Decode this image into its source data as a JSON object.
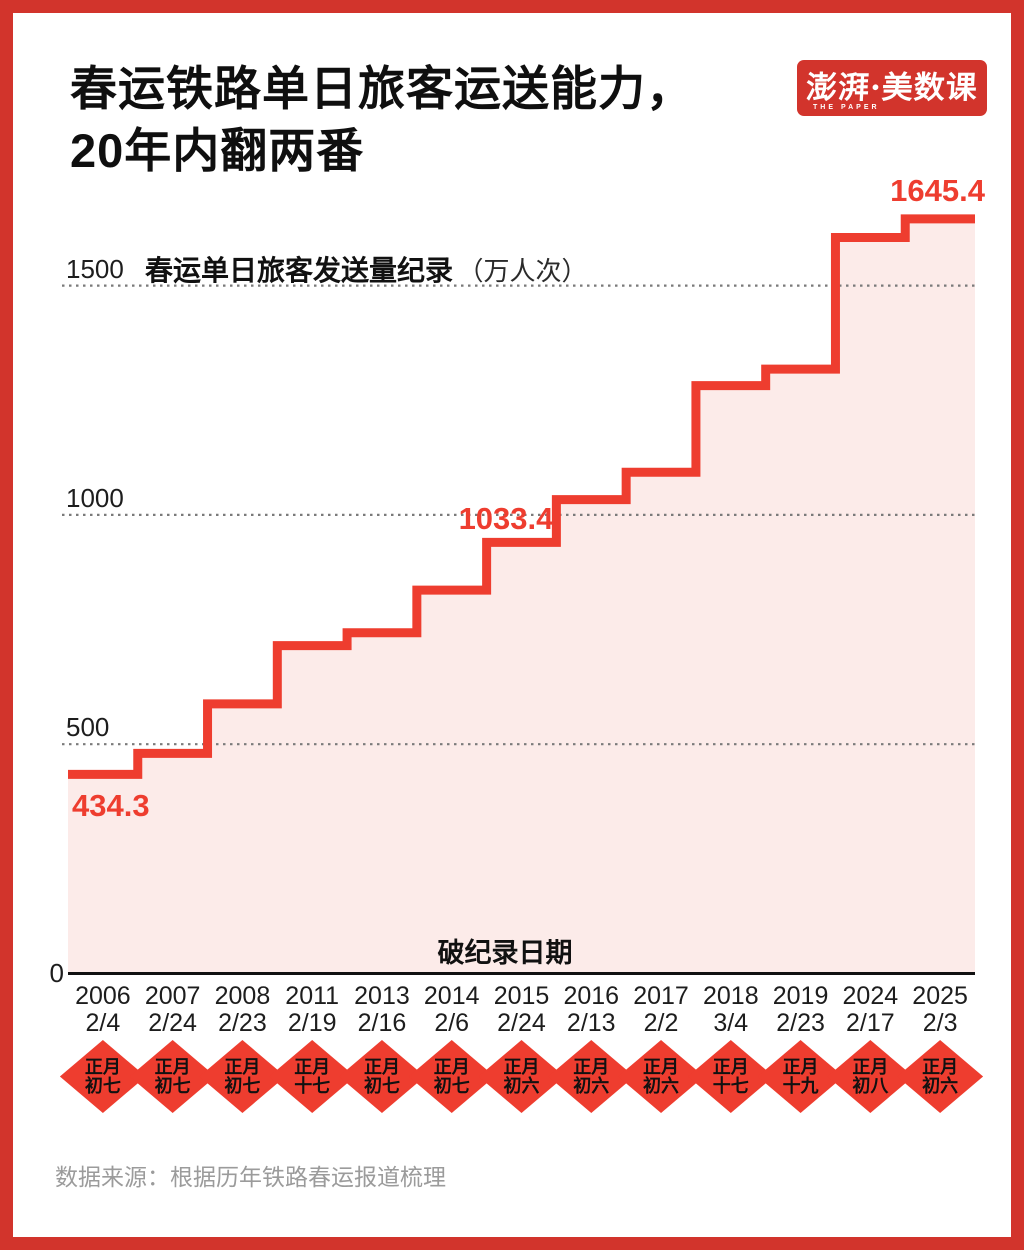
{
  "page": {
    "title_line1": "春运铁路单日旅客运送能力，",
    "title_line2": "20年内翻两番",
    "logo_text": "澎湃·美数课",
    "logo_subtext": "THE PAPER",
    "source": "数据来源：根据历年铁路春运报道梳理"
  },
  "colors": {
    "accent_red": "#ee3d2f",
    "frame_red": "#d2342c",
    "area_pink": "#fcebe9",
    "grid_gray": "#7a7a7a",
    "axis_black": "#111111",
    "source_gray": "#9b9b9b"
  },
  "chart_data": {
    "type": "step-area",
    "title": "春运铁路单日旅客运送能力，20年内翻两番",
    "series_label": "春运单日旅客发送量纪录",
    "series_unit": "（万人次）",
    "x_axis_label": "破纪录日期",
    "ylabel": "万人次",
    "y_ticks": [
      0,
      500,
      1000,
      1500
    ],
    "ylim": [
      0,
      1700
    ],
    "grid": "horizontal dotted",
    "legend_position": "top-left inside plot",
    "points": [
      {
        "year": "2006",
        "date": "2/4",
        "lunar": "正月初七",
        "value": 434.3,
        "labeled": true,
        "label_text": "434.3"
      },
      {
        "year": "2007",
        "date": "2/24",
        "lunar": "正月初七",
        "value": 480,
        "labeled": false
      },
      {
        "year": "2008",
        "date": "2/23",
        "lunar": "正月初七",
        "value": 588,
        "labeled": false
      },
      {
        "year": "2011",
        "date": "2/19",
        "lunar": "正月十七",
        "value": 715,
        "labeled": false
      },
      {
        "year": "2013",
        "date": "2/16",
        "lunar": "正月初七",
        "value": 743,
        "labeled": false
      },
      {
        "year": "2014",
        "date": "2/6",
        "lunar": "正月初七",
        "value": 836,
        "labeled": false
      },
      {
        "year": "2015",
        "date": "2/24",
        "lunar": "正月初六",
        "value": 940,
        "labeled": false
      },
      {
        "year": "2016",
        "date": "2/13",
        "lunar": "正月初六",
        "value": 1033.4,
        "labeled": true,
        "label_text": "1033.4"
      },
      {
        "year": "2017",
        "date": "2/2",
        "lunar": "正月初六",
        "value": 1093,
        "labeled": false
      },
      {
        "year": "2018",
        "date": "3/4",
        "lunar": "正月十七",
        "value": 1282,
        "labeled": false
      },
      {
        "year": "2019",
        "date": "2/23",
        "lunar": "正月十九",
        "value": 1318,
        "labeled": false
      },
      {
        "year": "2024",
        "date": "2/17",
        "lunar": "正月初八",
        "value": 1605,
        "labeled": false
      },
      {
        "year": "2025",
        "date": "2/3",
        "lunar": "正月初六",
        "value": 1645.4,
        "labeled": true,
        "label_text": "1645.4"
      }
    ]
  }
}
